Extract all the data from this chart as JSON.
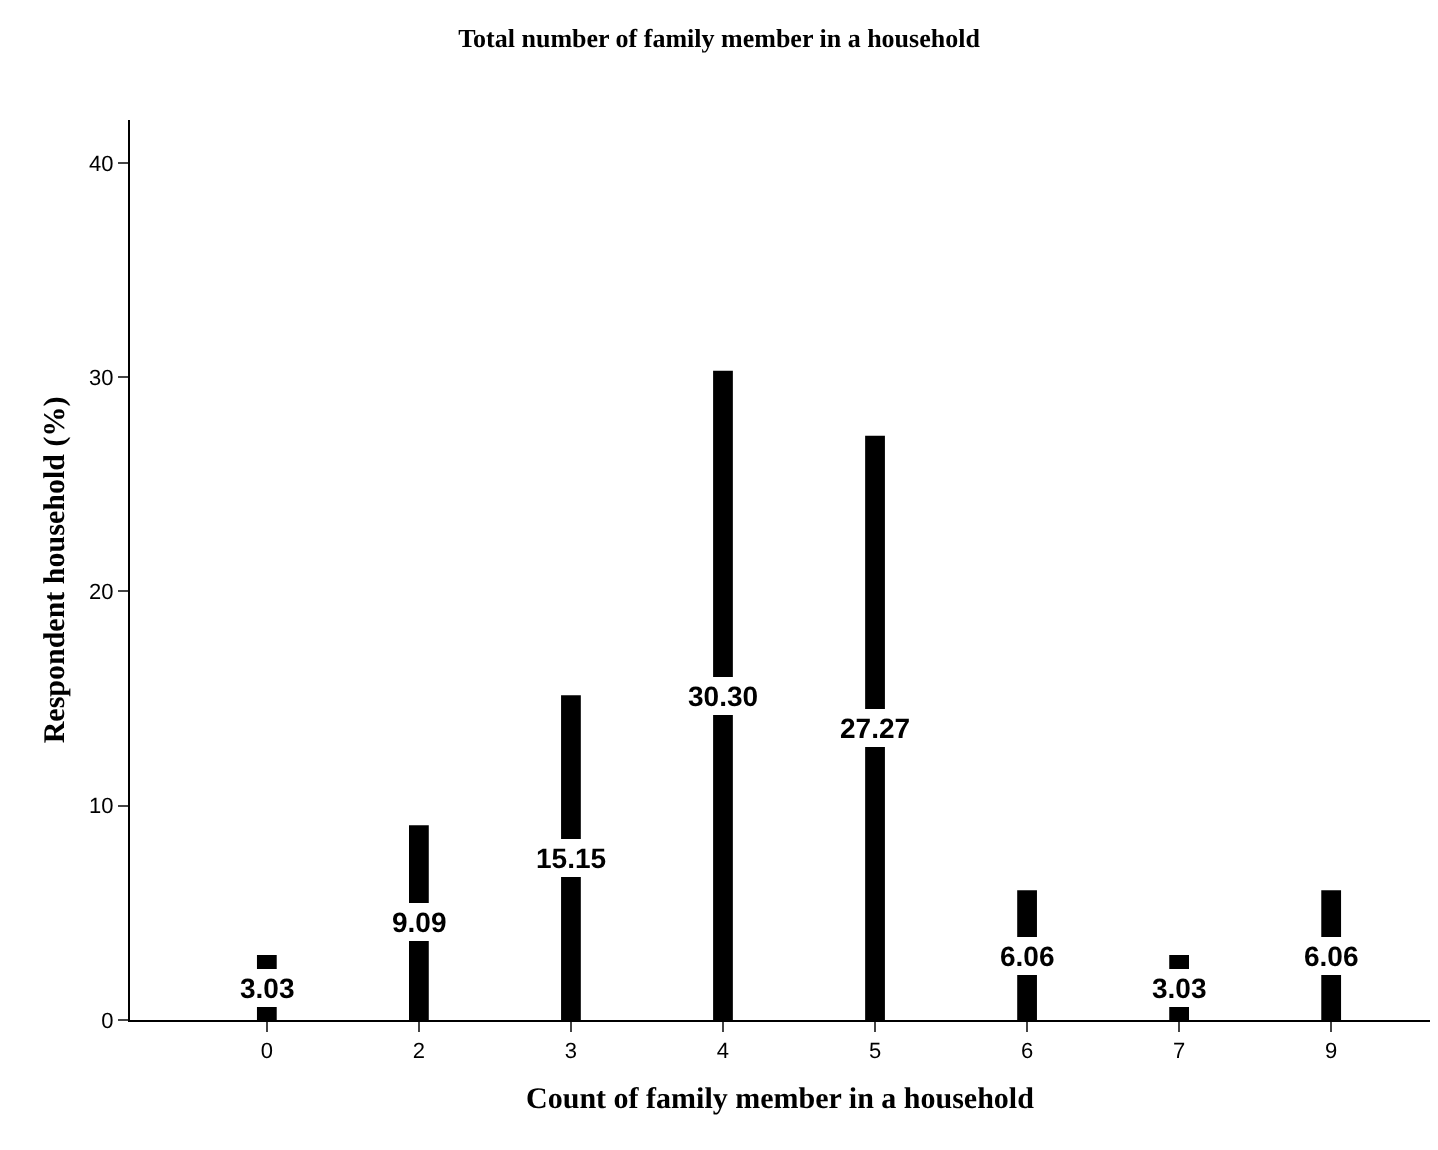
{
  "chart_data": {
    "type": "bar",
    "title": "Total number of family member in a household",
    "xlabel": "Count of family member in a household",
    "ylabel": "Respondent household (%)",
    "categories": [
      "0",
      "2",
      "3",
      "4",
      "5",
      "6",
      "7",
      "9"
    ],
    "values": [
      3.03,
      9.09,
      15.15,
      30.3,
      27.27,
      6.06,
      3.03,
      6.06
    ],
    "value_labels": [
      "3.03",
      "9.09",
      "15.15",
      "30.30",
      "27.27",
      "6.06",
      "3.03",
      "6.06"
    ],
    "color": "#000000",
    "ylim": [
      0,
      42
    ],
    "yticks": [
      0,
      10,
      20,
      30,
      40
    ],
    "grid": false
  }
}
